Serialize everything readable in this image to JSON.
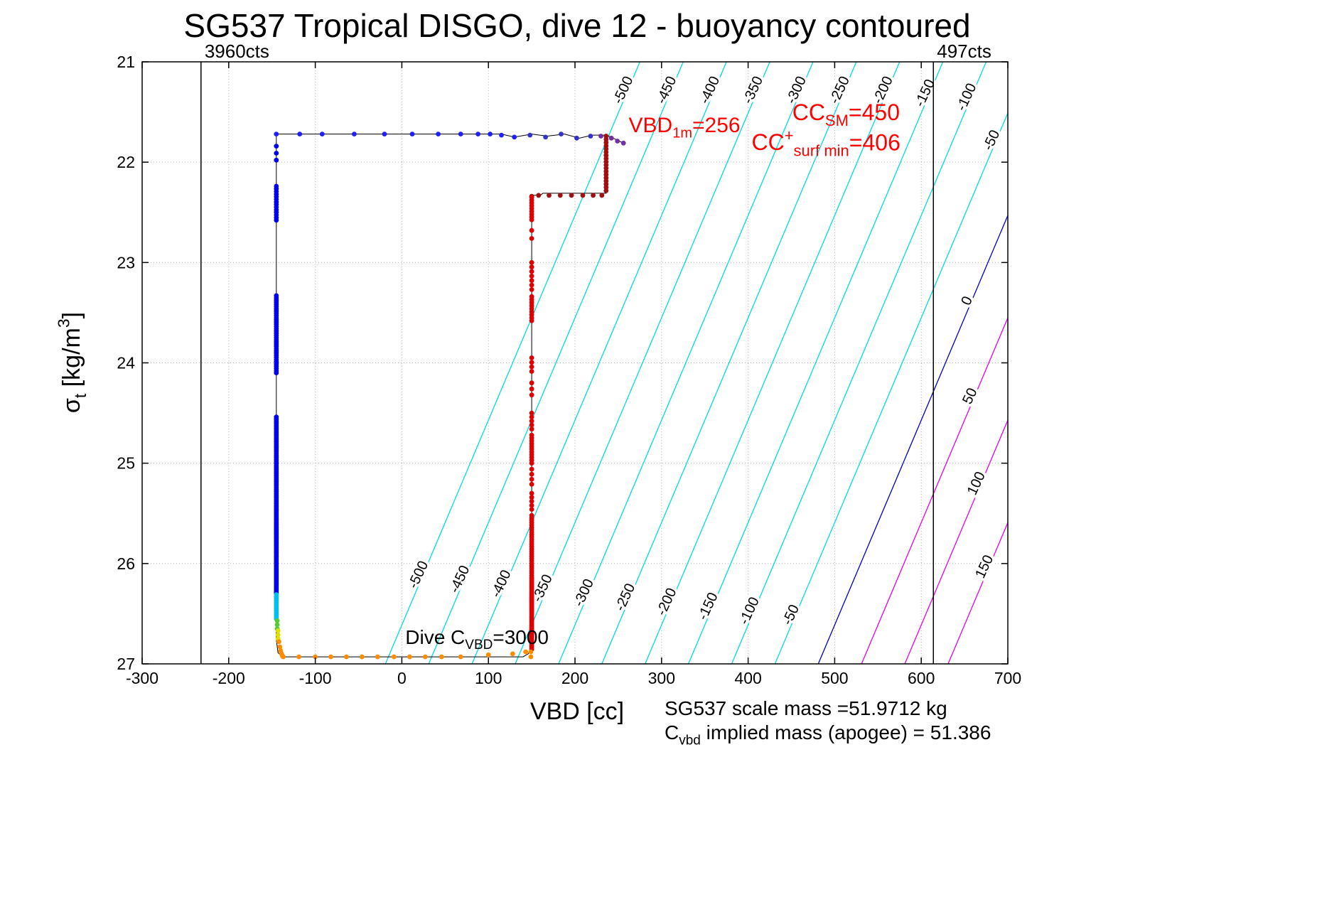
{
  "title": "SG537 Tropical DISGO, dive 12 - buoyancy contoured",
  "footer": {
    "line1": "SG537 scale mass =51.9712 kg",
    "line2_parts": [
      {
        "t": "C"
      },
      {
        "t": "vbd",
        "sub": true
      },
      {
        "t": " implied mass (apogee) = 51.386"
      }
    ]
  },
  "chart_data": {
    "type": "scatter",
    "title": "SG537 Tropical DISGO, dive 12 - buoyancy contoured",
    "xlabel": "VBD [cc]",
    "ylabel": "sigma_t [kg/m^3]",
    "ylabel_parts": [
      {
        "t": "σ"
      },
      {
        "t": "t",
        "sub": true
      },
      {
        "t": " [kg/m"
      },
      {
        "t": "3",
        "sup": true
      },
      {
        "t": "]"
      }
    ],
    "xlim": [
      -300,
      700
    ],
    "ylim": [
      21,
      27
    ],
    "y_direction": "reversed",
    "x_ticks": [
      -300,
      -200,
      -100,
      0,
      100,
      200,
      300,
      400,
      500,
      600,
      700
    ],
    "y_ticks": [
      21,
      22,
      23,
      24,
      25,
      26,
      27
    ],
    "grid_style": "dotted",
    "point_radius": 3.4,
    "reference_lines": [
      {
        "x": -232,
        "label": "3960cts"
      },
      {
        "x": 614,
        "label": "497cts"
      }
    ],
    "contours": {
      "formula": "buoyancy_cc = VBD + 49*sigma_t - 1804",
      "slope_cc_per_sigma": 49,
      "offset_cc": 1804,
      "label_rotation_deg": -65,
      "levels": [
        {
          "value": -500,
          "color": "#00dce0",
          "label_sigmas": [
            21.3,
            26.13
          ]
        },
        {
          "value": -450,
          "color": "#00dce0",
          "label_sigmas": [
            21.3,
            26.175
          ]
        },
        {
          "value": -400,
          "color": "#00dce0",
          "label_sigmas": [
            21.3,
            26.22
          ]
        },
        {
          "value": -350,
          "color": "#00dce0",
          "label_sigmas": [
            21.3,
            26.265
          ]
        },
        {
          "value": -300,
          "color": "#00dce0",
          "label_sigmas": [
            21.3,
            26.31
          ]
        },
        {
          "value": -250,
          "color": "#00dce0",
          "label_sigmas": [
            21.3,
            26.355
          ]
        },
        {
          "value": -200,
          "color": "#00dce0",
          "label_sigmas": [
            21.3,
            26.4
          ]
        },
        {
          "value": -150,
          "color": "#00dce0",
          "label_sigmas": [
            21.33,
            26.445
          ]
        },
        {
          "value": -100,
          "color": "#00dce0",
          "label_sigmas": [
            21.37,
            26.49
          ]
        },
        {
          "value": -50,
          "color": "#00dce0",
          "label_sigmas": [
            21.8,
            26.53
          ]
        },
        {
          "value": 0,
          "color": "#0000c8",
          "label_sigmas": [
            23.4
          ]
        },
        {
          "value": 50,
          "color": "#e800e8",
          "label_sigmas": [
            24.35
          ]
        },
        {
          "value": 100,
          "color": "#e800e8",
          "label_sigmas": [
            25.22
          ]
        },
        {
          "value": 150,
          "color": "#e800e8",
          "label_sigmas": [
            26.05
          ]
        }
      ]
    },
    "track_line": {
      "color": "#000000",
      "loop": [
        [
          -145,
          21.72
        ],
        [
          115,
          21.72
        ],
        [
          130,
          21.75
        ],
        [
          150,
          21.72
        ],
        [
          168,
          21.74
        ],
        [
          188,
          21.72
        ],
        [
          205,
          21.76
        ],
        [
          220,
          21.73
        ],
        [
          236,
          21.73
        ],
        [
          236,
          22.31
        ],
        [
          163,
          22.31
        ],
        [
          160,
          22.33
        ],
        [
          150,
          22.33
        ],
        [
          150,
          26.84
        ],
        [
          146,
          26.9
        ],
        [
          140,
          26.93
        ],
        [
          -137,
          26.93
        ],
        [
          -143,
          26.89
        ],
        [
          -145,
          26.76
        ],
        [
          -145,
          21.72
        ]
      ],
      "spur": [
        [
          236,
          21.73
        ],
        [
          244,
          21.76
        ],
        [
          251,
          21.79
        ],
        [
          256,
          21.81
        ]
      ]
    },
    "point_groups": [
      {
        "name": "surface-row-blue",
        "color": "#2020ff",
        "points": [
          [
            -145,
            21.72
          ],
          [
            -118,
            21.72
          ],
          [
            -92,
            21.72
          ],
          [
            -55,
            21.72
          ],
          [
            -20,
            21.72
          ],
          [
            12,
            21.72
          ],
          [
            42,
            21.72
          ],
          [
            68,
            21.72
          ],
          [
            88,
            21.72
          ],
          [
            102,
            21.72
          ],
          [
            115,
            21.73
          ],
          [
            130,
            21.75
          ]
        ]
      },
      {
        "name": "surface-row-transition",
        "color": "#3333cc",
        "points": [
          [
            148,
            21.73
          ],
          [
            166,
            21.75
          ],
          [
            184,
            21.72
          ],
          [
            202,
            21.76
          ],
          [
            218,
            21.74
          ]
        ]
      },
      {
        "name": "surface-purple",
        "color": "#7030a0",
        "points": [
          [
            230,
            21.74
          ],
          [
            242,
            21.76
          ],
          [
            249,
            21.79
          ],
          [
            256,
            21.81
          ]
        ]
      },
      {
        "name": "apogee-column-darkred",
        "color": "#a01010",
        "x": 236,
        "sigma_ranges": [
          [
            21.74,
            22.31,
            0.032
          ]
        ]
      },
      {
        "name": "apogee-row-darkred",
        "color": "#a01010",
        "points": [
          [
            158,
            22.33
          ],
          [
            170,
            22.33
          ],
          [
            183,
            22.33
          ],
          [
            196,
            22.33
          ],
          [
            209,
            22.33
          ],
          [
            221,
            22.33
          ],
          [
            231,
            22.33
          ],
          [
            150,
            22.34
          ]
        ]
      },
      {
        "name": "right-column-red",
        "color": "#e00000",
        "x": 150,
        "sigma_ranges": [
          [
            22.35,
            22.6,
            0.028
          ],
          [
            22.68,
            22.76,
            0.08
          ],
          [
            23.0,
            23.3,
            0.045
          ],
          [
            23.34,
            23.58,
            0.03
          ],
          [
            23.95,
            24.1,
            0.045
          ],
          [
            24.2,
            24.32,
            0.06
          ],
          [
            24.5,
            24.66,
            0.04
          ],
          [
            24.72,
            25.02,
            0.028
          ],
          [
            25.06,
            25.22,
            0.05
          ],
          [
            25.3,
            25.46,
            0.04
          ],
          [
            25.52,
            26.12,
            0.024
          ],
          [
            26.14,
            26.86,
            0.014
          ]
        ]
      },
      {
        "name": "right-column-base-orange",
        "color": "#ff8c00",
        "x": 149,
        "sigma_ranges": [
          [
            26.88,
            26.93,
            0.05
          ]
        ]
      },
      {
        "name": "bottom-row-orange",
        "color": "#ff8c00",
        "points": [
          [
            -137,
            26.93
          ],
          [
            -119,
            26.93
          ],
          [
            -100,
            26.93
          ],
          [
            -82,
            26.93
          ],
          [
            -64,
            26.93
          ],
          [
            -46,
            26.93
          ],
          [
            -28,
            26.93
          ],
          [
            -9,
            26.93
          ],
          [
            9,
            26.93
          ],
          [
            27,
            26.93
          ],
          [
            46,
            26.93
          ],
          [
            68,
            26.93
          ],
          [
            100,
            26.91
          ],
          [
            128,
            26.9
          ],
          [
            143,
            26.88
          ]
        ]
      },
      {
        "name": "left-column-blue",
        "color": "#0000e8",
        "x": -145,
        "sigma_ranges": [
          [
            21.84,
            21.98,
            0.07
          ],
          [
            22.24,
            22.58,
            0.026
          ],
          [
            23.33,
            24.12,
            0.022
          ],
          [
            24.54,
            25.4,
            0.02
          ],
          [
            25.42,
            26.3,
            0.016
          ]
        ]
      },
      {
        "name": "left-column-cyan",
        "color": "#00bfe8",
        "x": -145,
        "sigma_ranges": [
          [
            26.31,
            26.55,
            0.02
          ]
        ]
      },
      {
        "name": "left-column-green",
        "color": "#55cc33",
        "x": -144,
        "sigma_ranges": [
          [
            26.57,
            26.65,
            0.04
          ]
        ]
      },
      {
        "name": "left-column-yellow",
        "color": "#e0e000",
        "x": -143,
        "sigma_ranges": [
          [
            26.67,
            26.75,
            0.04
          ]
        ]
      },
      {
        "name": "left-column-orange-bend",
        "color": "#ff8c00",
        "points": [
          [
            -142,
            26.78
          ],
          [
            -141,
            26.83
          ],
          [
            -140,
            26.87
          ],
          [
            -139,
            26.9
          ],
          [
            -138,
            26.92
          ]
        ]
      }
    ],
    "annotations": [
      {
        "name": "annotation-vbd-1m",
        "color": "#ff0000",
        "x": 262,
        "sigma": 21.7,
        "size": 30,
        "parts": [
          {
            "t": "VBD"
          },
          {
            "t": "1m",
            "sub": true
          },
          {
            "t": "=256"
          }
        ]
      },
      {
        "name": "annotation-cc-sm",
        "color": "#ff0000",
        "x": 451,
        "sigma": 21.58,
        "size": 32,
        "parts": [
          {
            "t": "CC"
          },
          {
            "t": "SM",
            "sub": true
          },
          {
            "t": "=450"
          }
        ]
      },
      {
        "name": "annotation-cc-surf-min",
        "color": "#ff0000",
        "x": 404,
        "sigma": 21.88,
        "size": 32,
        "parts": [
          {
            "t": "CC"
          },
          {
            "t": "+",
            "sup": true
          },
          {
            "t": "surf min",
            "sub": true
          },
          {
            "t": "=406"
          }
        ]
      },
      {
        "name": "annotation-dive-cvbd",
        "color": "#000000",
        "x": 4,
        "sigma": 26.8,
        "size": 28,
        "parts": [
          {
            "t": "Dive C"
          },
          {
            "t": "VBD",
            "sub": true
          },
          {
            "t": "=3000"
          }
        ]
      }
    ]
  }
}
